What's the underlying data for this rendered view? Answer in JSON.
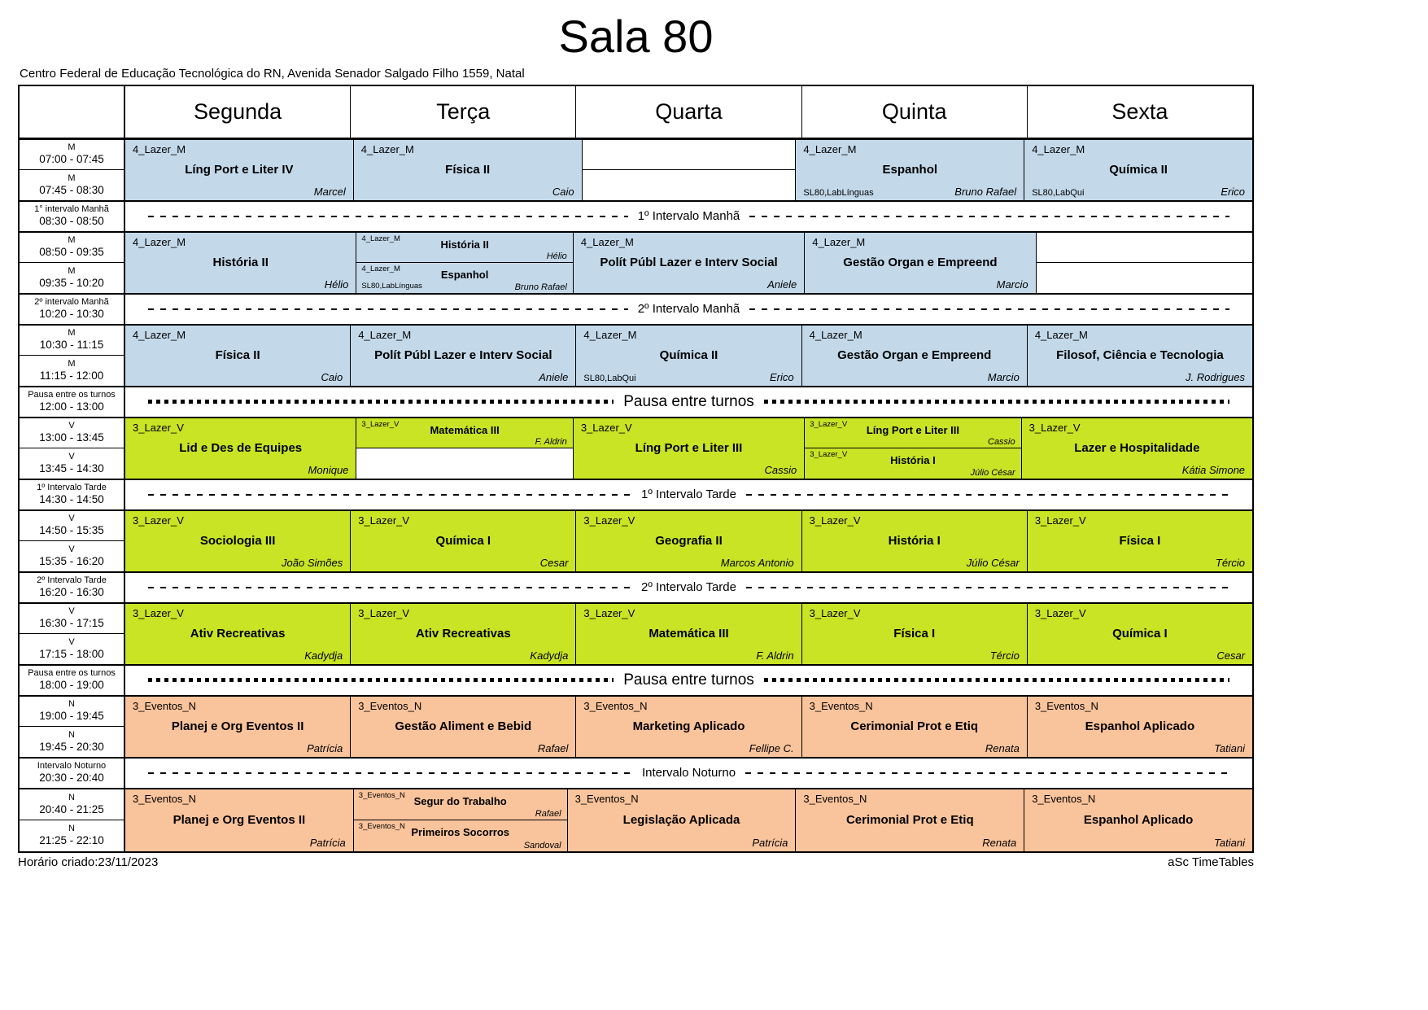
{
  "page": {
    "title": "Sala 80",
    "subtitle": "Centro Federal de Educação Tecnológica do RN, Avenida Senador Salgado Filho 1559, Natal",
    "footer_left": "Horário criado:23/11/2023",
    "footer_right": "aSc TimeTables"
  },
  "colors": {
    "morning": "#c3d9ea",
    "afternoon": "#c8e424",
    "evening": "#f9c39b"
  },
  "header": {
    "days": [
      "Segunda",
      "Terça",
      "Quarta",
      "Quinta",
      "Sexta"
    ]
  },
  "rows": [
    {
      "type": "block",
      "session": "m",
      "times": [
        {
          "tag": "M",
          "range": "07:00 - 07:45"
        },
        {
          "tag": "M",
          "range": "07:45 - 08:30"
        }
      ],
      "cells": [
        {
          "group": "4_Lazer_M",
          "subject": "Líng Port e Liter IV",
          "teacher": "Marcel"
        },
        {
          "group": "4_Lazer_M",
          "subject": "Física II",
          "teacher": "Caio"
        },
        {
          "empty": true
        },
        {
          "group": "4_Lazer_M",
          "subject": "Espanhol",
          "room": "SL80,LabLínguas",
          "teacher": "Bruno Rafael"
        },
        {
          "group": "4_Lazer_M",
          "subject": "Química II",
          "room": "SL80,LabQui",
          "teacher": "Erico"
        }
      ]
    },
    {
      "type": "interval",
      "style": "dash",
      "left_label": "1° intervalo Manhã",
      "time": "08:30 - 08:50",
      "band": "1º Intervalo Manhã"
    },
    {
      "type": "block",
      "session": "m",
      "times": [
        {
          "tag": "M",
          "range": "08:50 - 09:35"
        },
        {
          "tag": "M",
          "range": "09:35 - 10:20"
        }
      ],
      "cells": [
        {
          "group": "4_Lazer_M",
          "subject": "História II",
          "teacher": "Hélio"
        },
        {
          "split": [
            {
              "group": "4_Lazer_M",
              "subject": "História II",
              "teacher": "Hélio"
            },
            {
              "group": "4_Lazer_M",
              "subject": "Espanhol",
              "room": "SL80,LabLínguas",
              "teacher": "Bruno Rafael"
            }
          ]
        },
        {
          "group": "4_Lazer_M",
          "subject": "Polít Públ Lazer e Interv Social",
          "teacher": "Aniele"
        },
        {
          "group": "4_Lazer_M",
          "subject": "Gestão Organ e Empreend",
          "teacher": "Marcio"
        },
        {
          "empty": true
        }
      ]
    },
    {
      "type": "interval",
      "style": "dash",
      "left_label": "2º intervalo Manhã",
      "time": "10:20 - 10:30",
      "band": "2º Intervalo Manhã"
    },
    {
      "type": "block",
      "session": "m",
      "times": [
        {
          "tag": "M",
          "range": "10:30 - 11:15"
        },
        {
          "tag": "M",
          "range": "11:15 - 12:00"
        }
      ],
      "cells": [
        {
          "group": "4_Lazer_M",
          "subject": "Física II",
          "teacher": "Caio"
        },
        {
          "group": "4_Lazer_M",
          "subject": "Polít Públ Lazer e Interv Social",
          "teacher": "Aniele"
        },
        {
          "group": "4_Lazer_M",
          "subject": "Química II",
          "room": "SL80,LabQui",
          "teacher": "Erico"
        },
        {
          "group": "4_Lazer_M",
          "subject": "Gestão Organ e Empreend",
          "teacher": "Marcio"
        },
        {
          "group": "4_Lazer_M",
          "subject": "Filosof, Ciência e Tecnologia",
          "teacher": "J. Rodrigues"
        }
      ]
    },
    {
      "type": "interval",
      "style": "dots",
      "left_label": "Pausa entre os turnos",
      "time": "12:00 - 13:00",
      "band": "Pausa entre turnos"
    },
    {
      "type": "block",
      "session": "v",
      "times": [
        {
          "tag": "V",
          "range": "13:00 - 13:45"
        },
        {
          "tag": "V",
          "range": "13:45 - 14:30"
        }
      ],
      "cells": [
        {
          "group": "3_Lazer_V",
          "subject": "Lid e Des de Equipes",
          "teacher": "Monique"
        },
        {
          "split": [
            {
              "group": "3_Lazer_V",
              "subject": "Matemática III",
              "teacher": "F. Aldrin"
            },
            null
          ]
        },
        {
          "group": "3_Lazer_V",
          "subject": "Líng Port e Liter III",
          "teacher": "Cassio"
        },
        {
          "split": [
            {
              "group": "3_Lazer_V",
              "subject": "Líng Port e Liter III",
              "teacher": "Cassio"
            },
            {
              "group": "3_Lazer_V",
              "subject": "História I",
              "teacher": "Júlio César"
            }
          ]
        },
        {
          "group": "3_Lazer_V",
          "subject": "Lazer e Hospitalidade",
          "teacher": "Kátia Simone"
        }
      ]
    },
    {
      "type": "interval",
      "style": "dash",
      "left_label": "1º Intervalo Tarde",
      "time": "14:30 - 14:50",
      "band": "1º Intervalo Tarde"
    },
    {
      "type": "block",
      "session": "v",
      "times": [
        {
          "tag": "V",
          "range": "14:50 - 15:35"
        },
        {
          "tag": "V",
          "range": "15:35 - 16:20"
        }
      ],
      "cells": [
        {
          "group": "3_Lazer_V",
          "subject": "Sociologia III",
          "teacher": "João Simões"
        },
        {
          "group": "3_Lazer_V",
          "subject": "Química I",
          "teacher": "Cesar"
        },
        {
          "group": "3_Lazer_V",
          "subject": "Geografia II",
          "teacher": "Marcos Antonio"
        },
        {
          "group": "3_Lazer_V",
          "subject": "História I",
          "teacher": "Júlio César"
        },
        {
          "group": "3_Lazer_V",
          "subject": "Física I",
          "teacher": "Tércio"
        }
      ]
    },
    {
      "type": "interval",
      "style": "dash",
      "left_label": "2º Intervalo Tarde",
      "time": "16:20 - 16:30",
      "band": "2º Intervalo Tarde"
    },
    {
      "type": "block",
      "session": "v",
      "times": [
        {
          "tag": "V",
          "range": "16:30 - 17:15"
        },
        {
          "tag": "V",
          "range": "17:15 - 18:00"
        }
      ],
      "cells": [
        {
          "group": "3_Lazer_V",
          "subject": "Ativ Recreativas",
          "teacher": "Kadydja"
        },
        {
          "group": "3_Lazer_V",
          "subject": "Ativ Recreativas",
          "teacher": "Kadydja"
        },
        {
          "group": "3_Lazer_V",
          "subject": "Matemática III",
          "teacher": "F. Aldrin"
        },
        {
          "group": "3_Lazer_V",
          "subject": "Física I",
          "teacher": "Tércio"
        },
        {
          "group": "3_Lazer_V",
          "subject": "Química I",
          "teacher": "Cesar"
        }
      ]
    },
    {
      "type": "interval",
      "style": "dots",
      "left_label": "Pausa entre os turnos",
      "time": "18:00 - 19:00",
      "band": "Pausa entre turnos"
    },
    {
      "type": "block",
      "session": "n",
      "times": [
        {
          "tag": "N",
          "range": "19:00 - 19:45"
        },
        {
          "tag": "N",
          "range": "19:45 - 20:30"
        }
      ],
      "cells": [
        {
          "group": "3_Eventos_N",
          "subject": "Planej e Org Eventos II",
          "teacher": "Patrícia"
        },
        {
          "group": "3_Eventos_N",
          "subject": "Gestão Aliment e Bebid",
          "teacher": "Rafael"
        },
        {
          "group": "3_Eventos_N",
          "subject": "Marketing Aplicado",
          "teacher": "Fellipe C."
        },
        {
          "group": "3_Eventos_N",
          "subject": "Cerimonial Prot e Etiq",
          "teacher": "Renata"
        },
        {
          "group": "3_Eventos_N",
          "subject": "Espanhol Aplicado",
          "teacher": "Tatiani"
        }
      ]
    },
    {
      "type": "interval",
      "style": "dash",
      "left_label": "Intervalo Noturno",
      "time": "20:30 - 20:40",
      "band": "Intervalo Noturno"
    },
    {
      "type": "block",
      "session": "n",
      "times": [
        {
          "tag": "N",
          "range": "20:40 - 21:25"
        },
        {
          "tag": "N",
          "range": "21:25 - 22:10"
        }
      ],
      "cells": [
        {
          "group": "3_Eventos_N",
          "subject": "Planej e Org Eventos II",
          "teacher": "Patrícia"
        },
        {
          "split": [
            {
              "group": "3_Eventos_N",
              "subject": "Segur do Trabalho",
              "teacher": "Rafael"
            },
            {
              "group": "3_Eventos_N",
              "subject": "Primeiros Socorros",
              "teacher": "Sandoval"
            }
          ]
        },
        {
          "group": "3_Eventos_N",
          "subject": "Legislação Aplicada",
          "teacher": "Patrícia"
        },
        {
          "group": "3_Eventos_N",
          "subject": "Cerimonial Prot e Etiq",
          "teacher": "Renata"
        },
        {
          "group": "3_Eventos_N",
          "subject": "Espanhol Aplicado",
          "teacher": "Tatiani"
        }
      ]
    }
  ]
}
